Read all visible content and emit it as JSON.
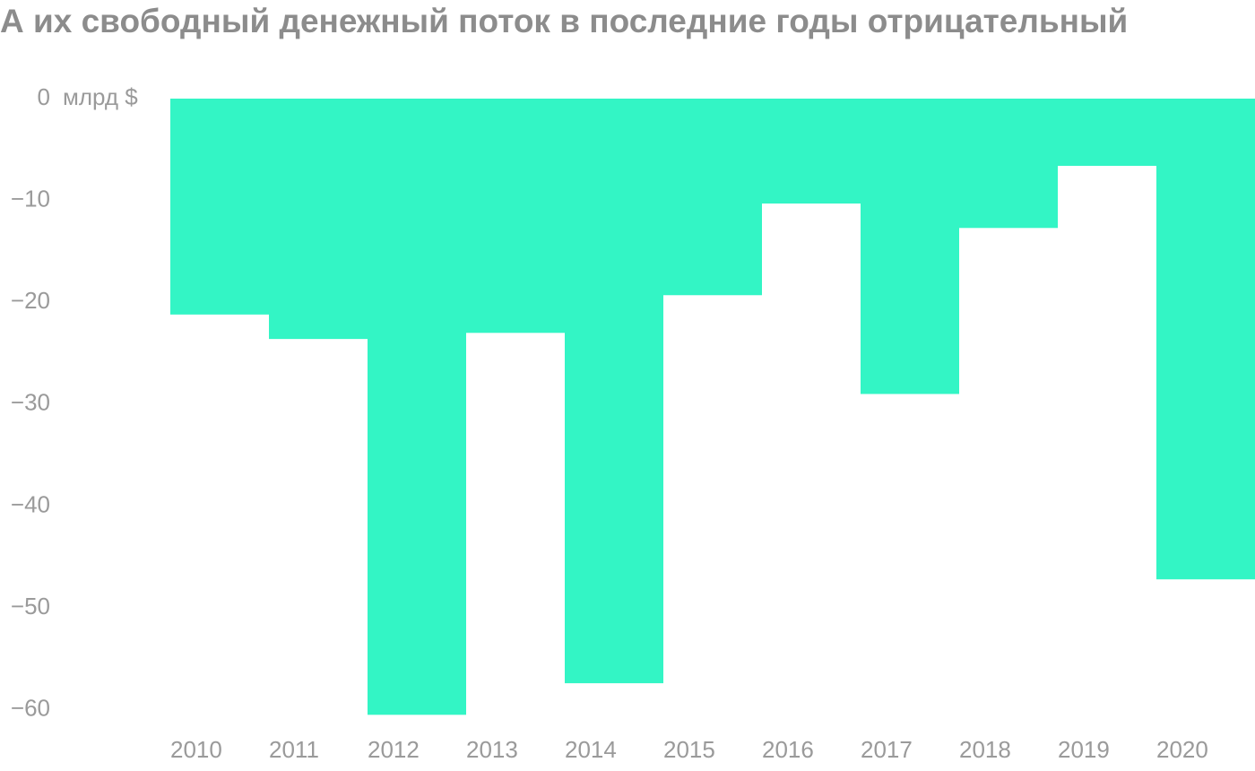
{
  "chart_data": {
    "type": "bar",
    "title": "А их свободный денежный поток в последние годы отрицательный",
    "y_unit": "млрд $",
    "categories": [
      "2010",
      "2011",
      "2012",
      "2013",
      "2014",
      "2015",
      "2016",
      "2017",
      "2018",
      "2019",
      "2020"
    ],
    "values": [
      -21.2,
      -23.6,
      -60.5,
      -23.0,
      -57.4,
      -19.3,
      -10.3,
      -29.0,
      -12.7,
      -6.6,
      -47.2
    ],
    "color": "#33f5c5",
    "ylim": [
      -61,
      0
    ],
    "yticks": [
      0,
      {
        "value": -10,
        "label": "−10"
      },
      {
        "value": -20,
        "label": "−20"
      },
      {
        "value": -30,
        "label": "−30"
      },
      {
        "value": -40,
        "label": "−40"
      },
      {
        "value": -50,
        "label": "−50"
      },
      {
        "value": -60,
        "label": "−60"
      }
    ],
    "grid": false
  }
}
